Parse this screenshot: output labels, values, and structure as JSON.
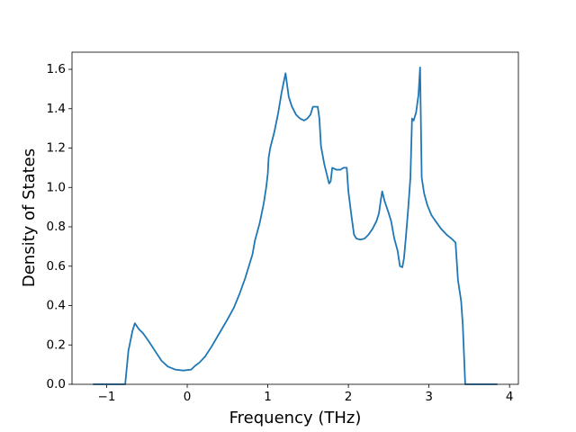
{
  "chart_data": {
    "type": "line",
    "x_label": "Frequency (THz)",
    "y_label": "Density of States",
    "color": "#1f77b4",
    "xlim": [
      -1.43,
      4.11
    ],
    "ylim": [
      0,
      1.687
    ],
    "xticks": [
      {
        "value": -1,
        "label": "−1"
      },
      0,
      1,
      2,
      3,
      4
    ],
    "yticks": [
      {
        "value": 0,
        "label": "0.0"
      },
      {
        "value": 0.2,
        "label": "0.2"
      },
      {
        "value": 0.4,
        "label": "0.4"
      },
      {
        "value": 0.6,
        "label": "0.6"
      },
      {
        "value": 0.8,
        "label": "0.8"
      },
      {
        "value": 1.0,
        "label": "1.0"
      },
      {
        "value": 1.2,
        "label": "1.2"
      },
      {
        "value": 1.4,
        "label": "1.4"
      },
      {
        "value": 1.6,
        "label": "1.6"
      }
    ],
    "x": [
      -1.17,
      -0.77,
      -0.73,
      -0.68,
      -0.65,
      -0.6,
      -0.55,
      -0.48,
      -0.4,
      -0.32,
      -0.24,
      -0.15,
      -0.05,
      0.05,
      0.1,
      0.15,
      0.22,
      0.3,
      0.4,
      0.5,
      0.58,
      0.65,
      0.72,
      0.78,
      0.81,
      0.84,
      0.9,
      0.95,
      0.98,
      1.0,
      1.01,
      1.03,
      1.08,
      1.13,
      1.17,
      1.22,
      1.26,
      1.3,
      1.35,
      1.4,
      1.45,
      1.49,
      1.53,
      1.56,
      1.62,
      1.64,
      1.66,
      1.7,
      1.73,
      1.76,
      1.78,
      1.8,
      1.85,
      1.9,
      1.94,
      1.98,
      2.0,
      2.04,
      2.07,
      2.1,
      2.15,
      2.2,
      2.25,
      2.3,
      2.35,
      2.38,
      2.4,
      2.42,
      2.45,
      2.5,
      2.53,
      2.57,
      2.61,
      2.64,
      2.67,
      2.69,
      2.71,
      2.74,
      2.77,
      2.79,
      2.81,
      2.84,
      2.87,
      2.89,
      2.91,
      2.94,
      2.98,
      3.03,
      3.08,
      3.15,
      3.22,
      3.28,
      3.33,
      3.36,
      3.4,
      3.42,
      3.45,
      3.85
    ],
    "values": [
      0,
      0,
      0.17,
      0.27,
      0.31,
      0.28,
      0.26,
      0.22,
      0.17,
      0.12,
      0.09,
      0.075,
      0.07,
      0.075,
      0.095,
      0.11,
      0.14,
      0.19,
      0.26,
      0.33,
      0.39,
      0.46,
      0.54,
      0.62,
      0.66,
      0.73,
      0.82,
      0.92,
      1.0,
      1.07,
      1.15,
      1.2,
      1.28,
      1.38,
      1.48,
      1.58,
      1.46,
      1.41,
      1.37,
      1.35,
      1.34,
      1.35,
      1.37,
      1.41,
      1.41,
      1.35,
      1.21,
      1.12,
      1.07,
      1.02,
      1.03,
      1.1,
      1.09,
      1.09,
      1.1,
      1.1,
      0.98,
      0.85,
      0.76,
      0.74,
      0.735,
      0.74,
      0.76,
      0.79,
      0.83,
      0.87,
      0.93,
      0.98,
      0.93,
      0.87,
      0.83,
      0.74,
      0.68,
      0.6,
      0.595,
      0.64,
      0.73,
      0.88,
      1.05,
      1.35,
      1.34,
      1.38,
      1.47,
      1.61,
      1.05,
      0.97,
      0.91,
      0.86,
      0.83,
      0.79,
      0.76,
      0.74,
      0.72,
      0.53,
      0.42,
      0.3,
      0,
      0
    ]
  }
}
